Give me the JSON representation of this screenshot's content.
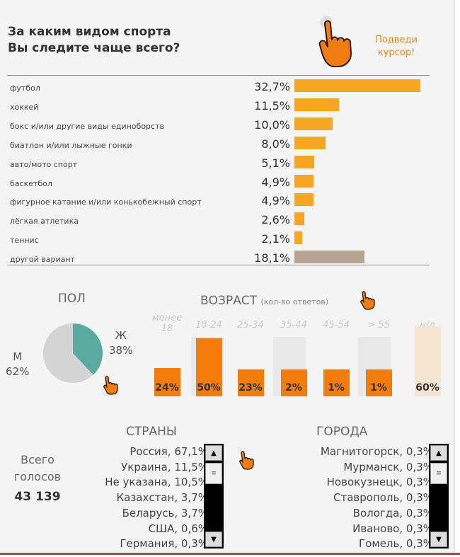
{
  "title": {
    "line1": "За каким видом спорта",
    "line2": "Вы следите чаще всего?"
  },
  "hint": {
    "line1": "Подведи",
    "line2": "курсор!"
  },
  "colors": {
    "main_bar": "#f5a623",
    "other_bar": "#b3a591",
    "age_bar": "#f47c0a",
    "age_na_bar": "#f5e4d0",
    "pie_female": "#5aaaa0",
    "pie_male": "#d4d4d4"
  },
  "chart_data": [
    {
      "type": "bar",
      "orientation": "horizontal",
      "title": "За каким видом спорта Вы следите чаще всего?",
      "categories": [
        "футбол",
        "хоккей",
        "бокс и/или другие виды единоборств",
        "биатлон и/или лыжные гонки",
        "авто/мото спорт",
        "баскетбол",
        "фигурное катание и/или конькобежный спорт",
        "лёгкая атлетика",
        "теннис",
        "другой вариант"
      ],
      "values": [
        32.7,
        11.5,
        10.0,
        8.0,
        5.1,
        4.9,
        4.9,
        2.6,
        2.1,
        18.1
      ],
      "value_labels": [
        "32,7%",
        "11,5%",
        "10,0%",
        "8,0%",
        "5,1%",
        "4,9%",
        "4,9%",
        "2,6%",
        "2,1%",
        "18,1%"
      ]
    },
    {
      "type": "pie",
      "title": "ПОЛ",
      "categories": [
        "Ж",
        "М"
      ],
      "values": [
        38,
        62
      ],
      "value_labels": [
        "38%",
        "62%"
      ]
    },
    {
      "type": "bar",
      "title": "ВОЗРАСТ",
      "title_note": "(кол-во ответов)",
      "categories": [
        "менее 18",
        "18-24",
        "25-34",
        "35-44",
        "45-54",
        "> 55",
        "н/д"
      ],
      "values": [
        24,
        50,
        23,
        2,
        1,
        1,
        60
      ],
      "value_labels": [
        "24%",
        "50%",
        "23%",
        "2%",
        "1%",
        "1%",
        "60%"
      ]
    }
  ],
  "totals": {
    "line1": "Всего",
    "line2": "голосов",
    "value": "43 139"
  },
  "countries": {
    "title": "СТРАНЫ",
    "items": [
      "Россия, 67,1%",
      "Украина, 11,5%",
      "Не указана, 10,5%",
      "Казахстан, 3,7%",
      "Беларусь, 3,7%",
      "США, 0,6%",
      "Германия, 0,3%"
    ]
  },
  "cities": {
    "title": "ГОРОДА",
    "items": [
      "Магнитогорск, 0,3%",
      "Мурманск, 0,3%",
      "Новокузнецк, 0,3%",
      "Ставрополь, 0,3%",
      "Вологда, 0,3%",
      "Иваново, 0,3%",
      "Гомель, 0,3%"
    ]
  }
}
